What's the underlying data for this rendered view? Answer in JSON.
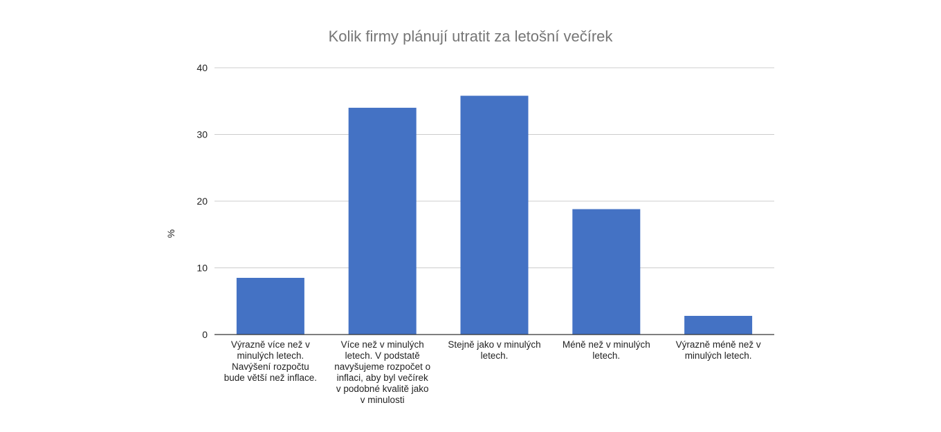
{
  "chart_data": {
    "type": "bar",
    "title": "Kolik firmy plánují utratit za letošní večírek",
    "xlabel": "",
    "ylabel": "%",
    "ylim": [
      0,
      40
    ],
    "yticks": [
      "0",
      "10",
      "20",
      "30",
      "40"
    ],
    "grid": true,
    "legend": "none",
    "bar_color": "#4472c4",
    "categories": [
      "Výrazně více než v minulých letech. Navýšení rozpočtu bude větší než inflace.",
      "Více než v minulých letech. V podstatě navyšujeme rozpočet o inflaci, aby byl večírek v podobné kvalitě jako v minulosti",
      "Stejně jako v minulých letech.",
      "Méně než v minulých letech.",
      "Výrazně méně než v minulých letech."
    ],
    "values": [
      8.5,
      34,
      35.8,
      18.8,
      2.8
    ]
  }
}
